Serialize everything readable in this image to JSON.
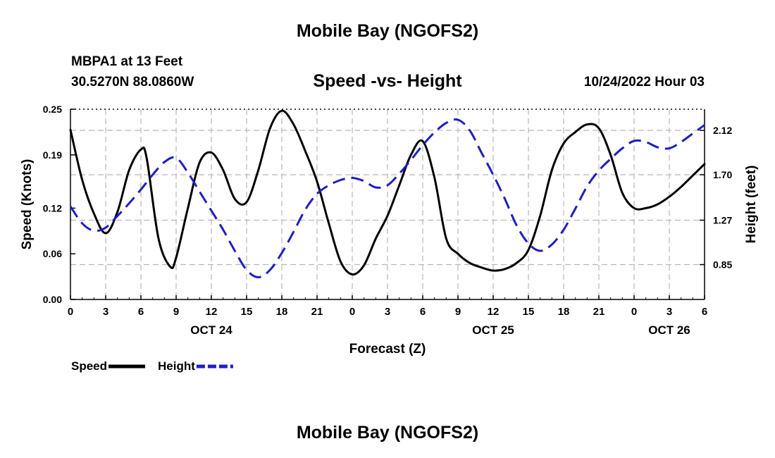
{
  "page_title": "Mobile Bay (NGOFS2)",
  "footer_title": "Mobile Bay (NGOFS2)",
  "station": {
    "name": "MBPA1 at 13 Feet",
    "coords": "30.5270N  88.0860W"
  },
  "run_time": "10/24/2022 Hour 03",
  "chart_data": {
    "type": "line",
    "title": "Speed -vs- Height",
    "xlabel": "Forecast (Z)",
    "ylabel_left": "Speed (Knots)",
    "ylabel_right": "Height (feet)",
    "x_range": [
      0,
      54
    ],
    "x_ticks": [
      {
        "x": 0,
        "label": "0"
      },
      {
        "x": 3,
        "label": "3"
      },
      {
        "x": 6,
        "label": "6"
      },
      {
        "x": 9,
        "label": "9"
      },
      {
        "x": 12,
        "label": "12"
      },
      {
        "x": 15,
        "label": "15"
      },
      {
        "x": 18,
        "label": "18"
      },
      {
        "x": 21,
        "label": "21"
      },
      {
        "x": 24,
        "label": "0"
      },
      {
        "x": 27,
        "label": "3"
      },
      {
        "x": 30,
        "label": "6"
      },
      {
        "x": 33,
        "label": "9"
      },
      {
        "x": 36,
        "label": "12"
      },
      {
        "x": 39,
        "label": "15"
      },
      {
        "x": 42,
        "label": "18"
      },
      {
        "x": 45,
        "label": "21"
      },
      {
        "x": 48,
        "label": "0"
      },
      {
        "x": 51,
        "label": "3"
      },
      {
        "x": 54,
        "label": "6"
      }
    ],
    "date_labels": [
      {
        "x": 12,
        "label": "OCT 24"
      },
      {
        "x": 36,
        "label": "OCT 25"
      },
      {
        "x": 51,
        "label": "OCT 26"
      }
    ],
    "y_left": {
      "range": [
        0,
        0.25
      ],
      "ticks": [
        "0.00",
        "0.06",
        "0.12",
        "0.19",
        "0.25"
      ]
    },
    "y_right": {
      "range": [
        0.52,
        2.32
      ],
      "ticks": [
        "0.85",
        "1.27",
        "1.70",
        "2.12"
      ]
    },
    "grid": true,
    "legend": "bottom-left",
    "series": [
      {
        "name": "Speed",
        "axis": "left",
        "color": "#000000",
        "style": "solid",
        "points": [
          [
            0,
            0.223
          ],
          [
            1,
            0.157
          ],
          [
            2,
            0.113
          ],
          [
            3,
            0.087
          ],
          [
            4,
            0.115
          ],
          [
            5,
            0.17
          ],
          [
            6,
            0.197
          ],
          [
            6.5,
            0.185
          ],
          [
            7.5,
            0.08
          ],
          [
            8.5,
            0.043
          ],
          [
            9,
            0.055
          ],
          [
            10,
            0.12
          ],
          [
            11,
            0.18
          ],
          [
            12,
            0.193
          ],
          [
            13,
            0.17
          ],
          [
            14,
            0.132
          ],
          [
            15,
            0.128
          ],
          [
            16,
            0.17
          ],
          [
            17,
            0.225
          ],
          [
            18,
            0.248
          ],
          [
            19,
            0.23
          ],
          [
            20,
            0.195
          ],
          [
            21,
            0.155
          ],
          [
            22,
            0.1
          ],
          [
            23,
            0.05
          ],
          [
            24,
            0.033
          ],
          [
            25,
            0.045
          ],
          [
            26,
            0.08
          ],
          [
            27,
            0.11
          ],
          [
            28,
            0.15
          ],
          [
            29,
            0.19
          ],
          [
            30,
            0.208
          ],
          [
            31,
            0.16
          ],
          [
            32,
            0.08
          ],
          [
            33,
            0.06
          ],
          [
            34,
            0.048
          ],
          [
            35,
            0.042
          ],
          [
            36,
            0.038
          ],
          [
            37,
            0.04
          ],
          [
            38,
            0.048
          ],
          [
            39,
            0.065
          ],
          [
            40,
            0.11
          ],
          [
            41,
            0.17
          ],
          [
            42,
            0.205
          ],
          [
            43,
            0.22
          ],
          [
            44,
            0.23
          ],
          [
            45,
            0.225
          ],
          [
            46,
            0.19
          ],
          [
            47,
            0.14
          ],
          [
            48,
            0.12
          ],
          [
            49,
            0.12
          ],
          [
            50,
            0.125
          ],
          [
            51,
            0.135
          ],
          [
            52,
            0.148
          ],
          [
            53,
            0.163
          ],
          [
            54,
            0.178
          ]
        ]
      },
      {
        "name": "Height",
        "axis": "right",
        "color": "#1f1fbf",
        "style": "dashed",
        "points": [
          [
            0,
            1.4
          ],
          [
            1,
            1.24
          ],
          [
            2,
            1.17
          ],
          [
            3,
            1.2
          ],
          [
            4,
            1.31
          ],
          [
            5,
            1.43
          ],
          [
            6,
            1.56
          ],
          [
            7,
            1.7
          ],
          [
            8,
            1.82
          ],
          [
            9,
            1.86
          ],
          [
            10,
            1.72
          ],
          [
            11,
            1.54
          ],
          [
            12,
            1.36
          ],
          [
            13,
            1.18
          ],
          [
            14,
            0.98
          ],
          [
            15,
            0.8
          ],
          [
            16,
            0.73
          ],
          [
            17,
            0.8
          ],
          [
            18,
            0.96
          ],
          [
            19,
            1.16
          ],
          [
            20,
            1.37
          ],
          [
            21,
            1.52
          ],
          [
            22,
            1.6
          ],
          [
            23,
            1.65
          ],
          [
            24,
            1.67
          ],
          [
            25,
            1.64
          ],
          [
            26,
            1.58
          ],
          [
            27,
            1.6
          ],
          [
            28,
            1.71
          ],
          [
            29,
            1.84
          ],
          [
            30,
            1.98
          ],
          [
            31,
            2.1
          ],
          [
            32,
            2.19
          ],
          [
            33,
            2.22
          ],
          [
            34,
            2.12
          ],
          [
            35,
            1.91
          ],
          [
            36,
            1.7
          ],
          [
            37,
            1.47
          ],
          [
            38,
            1.22
          ],
          [
            39,
            1.05
          ],
          [
            40,
            0.98
          ],
          [
            41,
            1.04
          ],
          [
            42,
            1.18
          ],
          [
            43,
            1.38
          ],
          [
            44,
            1.59
          ],
          [
            45,
            1.74
          ],
          [
            46,
            1.85
          ],
          [
            47,
            1.95
          ],
          [
            48,
            2.02
          ],
          [
            49,
            2.01
          ],
          [
            50,
            1.96
          ],
          [
            51,
            1.95
          ],
          [
            52,
            2.01
          ],
          [
            53,
            2.09
          ],
          [
            54,
            2.17
          ]
        ]
      }
    ]
  }
}
